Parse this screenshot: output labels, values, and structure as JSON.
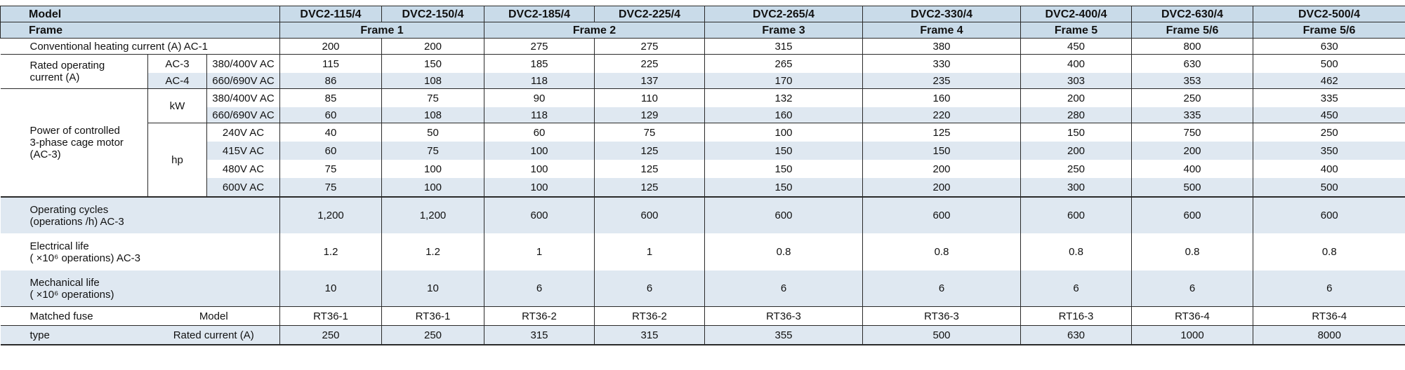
{
  "table": {
    "model_label": "Model",
    "frame_label": "Frame",
    "models": [
      "DVC2-115/4",
      "DVC2-150/4",
      "DVC2-185/4",
      "DVC2-225/4",
      "DVC2-265/4",
      "DVC2-330/4",
      "DVC2-400/4",
      "DVC2-630/4",
      "DVC2-500/4"
    ],
    "frames": [
      "Frame 1",
      "Frame 2",
      "Frame 3",
      "Frame 4",
      "Frame 5",
      "Frame 5/6",
      "Frame 5/6"
    ],
    "conv_heating": {
      "label": "Conventional heating current (A) AC-1",
      "values": [
        "200",
        "200",
        "275",
        "275",
        "315",
        "380",
        "450",
        "800",
        "630"
      ]
    },
    "rated_current": {
      "label_line1": "Rated operating",
      "label_line2": "current (A)",
      "rows": [
        {
          "cat": "AC-3",
          "volt": "380/400V AC",
          "values": [
            "115",
            "150",
            "185",
            "225",
            "265",
            "330",
            "400",
            "630",
            "500"
          ]
        },
        {
          "cat": "AC-4",
          "volt": "660/690V AC",
          "values": [
            "86",
            "108",
            "118",
            "137",
            "170",
            "235",
            "303",
            "353",
            "462"
          ]
        }
      ]
    },
    "power": {
      "label_line1": "Power of controlled",
      "label_line2": "3-phase cage motor",
      "label_line3": "(AC-3)",
      "kw_label": "kW",
      "hp_label": "hp",
      "kw_rows": [
        {
          "volt": "380/400V AC",
          "values": [
            "85",
            "75",
            "90",
            "110",
            "132",
            "160",
            "200",
            "250",
            "335"
          ]
        },
        {
          "volt": "660/690V AC",
          "values": [
            "60",
            "108",
            "118",
            "129",
            "160",
            "220",
            "280",
            "335",
            "450"
          ]
        }
      ],
      "hp_rows": [
        {
          "volt": "240V  AC",
          "values": [
            "40",
            "50",
            "60",
            "75",
            "100",
            "125",
            "150",
            "750",
            "250"
          ]
        },
        {
          "volt": "415V AC",
          "values": [
            "60",
            "75",
            "100",
            "125",
            "150",
            "150",
            "200",
            "200",
            "350"
          ]
        },
        {
          "volt": "480V AC",
          "values": [
            "75",
            "100",
            "100",
            "125",
            "150",
            "200",
            "250",
            "400",
            "400"
          ]
        },
        {
          "volt": "600V AC",
          "values": [
            "75",
            "100",
            "100",
            "125",
            "150",
            "200",
            "300",
            "500",
            "500"
          ]
        }
      ]
    },
    "operating_cycles": {
      "label_line1": "Operating cycles",
      "label_line2": "(operations /h) AC-3",
      "values": [
        "1,200",
        "1,200",
        "600",
        "600",
        "600",
        "600",
        "600",
        "600",
        "600"
      ]
    },
    "electrical_life": {
      "label_line1": "Electrical life",
      "label_line2": "( ×10⁶ operations) AC-3",
      "values": [
        "1.2",
        "1.2",
        "1",
        "1",
        "0.8",
        "0.8",
        "0.8",
        "0.8",
        "0.8"
      ]
    },
    "mechanical_life": {
      "label_line1": "Mechanical life",
      "label_line2": " ( ×10⁶ operations)",
      "values": [
        "10",
        "10",
        "6",
        "6",
        "6",
        "6",
        "6",
        "6",
        "6"
      ]
    },
    "fuse": {
      "label_line1": "Matched fuse",
      "label_line2": "type",
      "model_label": "Model",
      "rated_label": "Rated current (A)",
      "models": [
        "RT36-1",
        "RT36-1",
        "RT36-2",
        "RT36-2",
        "RT36-3",
        "RT36-3",
        "RT16-3",
        "RT36-4",
        "RT36-4"
      ],
      "currents": [
        "250",
        "250",
        "315",
        "315",
        "355",
        "500",
        "630",
        "1000",
        "8000"
      ]
    }
  }
}
